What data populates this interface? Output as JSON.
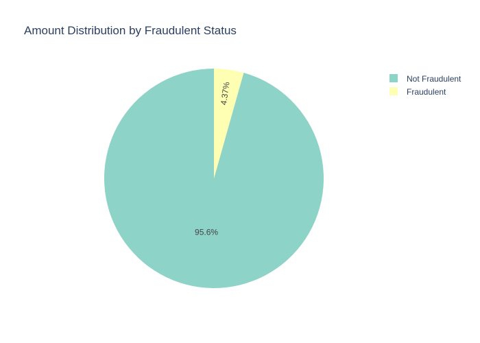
{
  "chart_data": {
    "type": "pie",
    "title": "Amount Distribution by Fraudulent Status",
    "categories": [
      "Not Fraudulent",
      "Fraudulent"
    ],
    "values": [
      95.63,
      4.37
    ],
    "value_labels": [
      "95.6%",
      "4.37%"
    ],
    "colors": [
      "#8dd3c7",
      "#ffffb3"
    ],
    "legend": {
      "position": "top-right",
      "entries": [
        "Not Fraudulent",
        "Fraudulent"
      ]
    }
  }
}
